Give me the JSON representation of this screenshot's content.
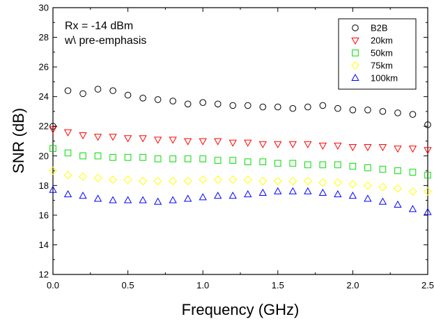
{
  "chart_data": {
    "type": "scatter",
    "xlabel": "Frequency (GHz)",
    "ylabel": "SNR (dB)",
    "xlim": [
      0.0,
      2.5
    ],
    "ylim": [
      12,
      30
    ],
    "xticks": [
      "0.0",
      "0.5",
      "1.0",
      "1.5",
      "2.0",
      "2.5"
    ],
    "yticks": [
      "12",
      "14",
      "16",
      "18",
      "20",
      "22",
      "24",
      "26",
      "28",
      "30"
    ],
    "annotations": [
      "Rx = -14 dBm",
      "w\\ pre-emphasis"
    ],
    "grid": false,
    "legend_position": "top-right",
    "series": [
      {
        "name": "B2B",
        "marker": "circle",
        "color": "#000000",
        "x": [
          0.0,
          0.1,
          0.2,
          0.3,
          0.4,
          0.5,
          0.6,
          0.7,
          0.8,
          0.9,
          1.0,
          1.1,
          1.2,
          1.3,
          1.4,
          1.5,
          1.6,
          1.7,
          1.8,
          1.9,
          2.0,
          2.1,
          2.2,
          2.3,
          2.4,
          2.5
        ],
        "y": [
          22.0,
          24.4,
          24.2,
          24.5,
          24.4,
          24.1,
          23.9,
          23.8,
          23.7,
          23.5,
          23.6,
          23.5,
          23.4,
          23.4,
          23.3,
          23.3,
          23.2,
          23.3,
          23.4,
          23.2,
          23.1,
          23.1,
          23.0,
          22.9,
          22.8,
          22.1
        ]
      },
      {
        "name": "20km",
        "marker": "triangle-down",
        "color": "#ff0000",
        "x": [
          0.0,
          0.1,
          0.2,
          0.3,
          0.4,
          0.5,
          0.6,
          0.7,
          0.8,
          0.9,
          1.0,
          1.1,
          1.2,
          1.3,
          1.4,
          1.5,
          1.6,
          1.7,
          1.8,
          1.9,
          2.0,
          2.1,
          2.2,
          2.3,
          2.4,
          2.5
        ],
        "y": [
          21.8,
          21.6,
          21.4,
          21.3,
          21.3,
          21.2,
          21.2,
          21.1,
          21.1,
          21.0,
          21.0,
          21.0,
          20.9,
          20.9,
          20.8,
          20.8,
          20.8,
          20.8,
          20.7,
          20.7,
          20.6,
          20.6,
          20.6,
          20.5,
          20.5,
          20.4
        ]
      },
      {
        "name": "50km",
        "marker": "square",
        "color": "#00dd00",
        "x": [
          0.0,
          0.1,
          0.2,
          0.3,
          0.4,
          0.5,
          0.6,
          0.7,
          0.8,
          0.9,
          1.0,
          1.1,
          1.2,
          1.3,
          1.4,
          1.5,
          1.6,
          1.7,
          1.8,
          1.9,
          2.0,
          2.1,
          2.2,
          2.3,
          2.4,
          2.5
        ],
        "y": [
          20.5,
          20.2,
          20.0,
          20.0,
          19.9,
          19.9,
          19.9,
          19.8,
          19.8,
          19.8,
          19.8,
          19.7,
          19.7,
          19.6,
          19.6,
          19.5,
          19.5,
          19.4,
          19.4,
          19.4,
          19.3,
          19.2,
          19.1,
          19.0,
          18.9,
          18.7
        ]
      },
      {
        "name": "75km",
        "marker": "diamond",
        "color": "#ffff00",
        "x": [
          0.0,
          0.1,
          0.2,
          0.3,
          0.4,
          0.5,
          0.6,
          0.7,
          0.8,
          0.9,
          1.0,
          1.1,
          1.2,
          1.3,
          1.4,
          1.5,
          1.6,
          1.7,
          1.8,
          1.9,
          2.0,
          2.1,
          2.2,
          2.3,
          2.4,
          2.5
        ],
        "y": [
          19.0,
          18.7,
          18.6,
          18.5,
          18.4,
          18.4,
          18.3,
          18.3,
          18.3,
          18.3,
          18.4,
          18.4,
          18.4,
          18.4,
          18.3,
          18.3,
          18.3,
          18.3,
          18.2,
          18.2,
          18.1,
          18.0,
          17.9,
          17.8,
          17.6,
          17.6
        ]
      },
      {
        "name": "100km",
        "marker": "triangle-up",
        "color": "#0000ff",
        "x": [
          0.0,
          0.1,
          0.2,
          0.3,
          0.4,
          0.5,
          0.6,
          0.7,
          0.8,
          0.9,
          1.0,
          1.1,
          1.2,
          1.3,
          1.4,
          1.5,
          1.6,
          1.7,
          1.8,
          1.9,
          2.0,
          2.1,
          2.2,
          2.3,
          2.4,
          2.5
        ],
        "y": [
          17.7,
          17.4,
          17.3,
          17.1,
          17.0,
          17.0,
          17.0,
          16.9,
          17.0,
          17.1,
          17.2,
          17.3,
          17.3,
          17.4,
          17.5,
          17.6,
          17.6,
          17.6,
          17.5,
          17.4,
          17.3,
          17.1,
          16.9,
          16.7,
          16.4,
          16.2
        ]
      }
    ]
  }
}
